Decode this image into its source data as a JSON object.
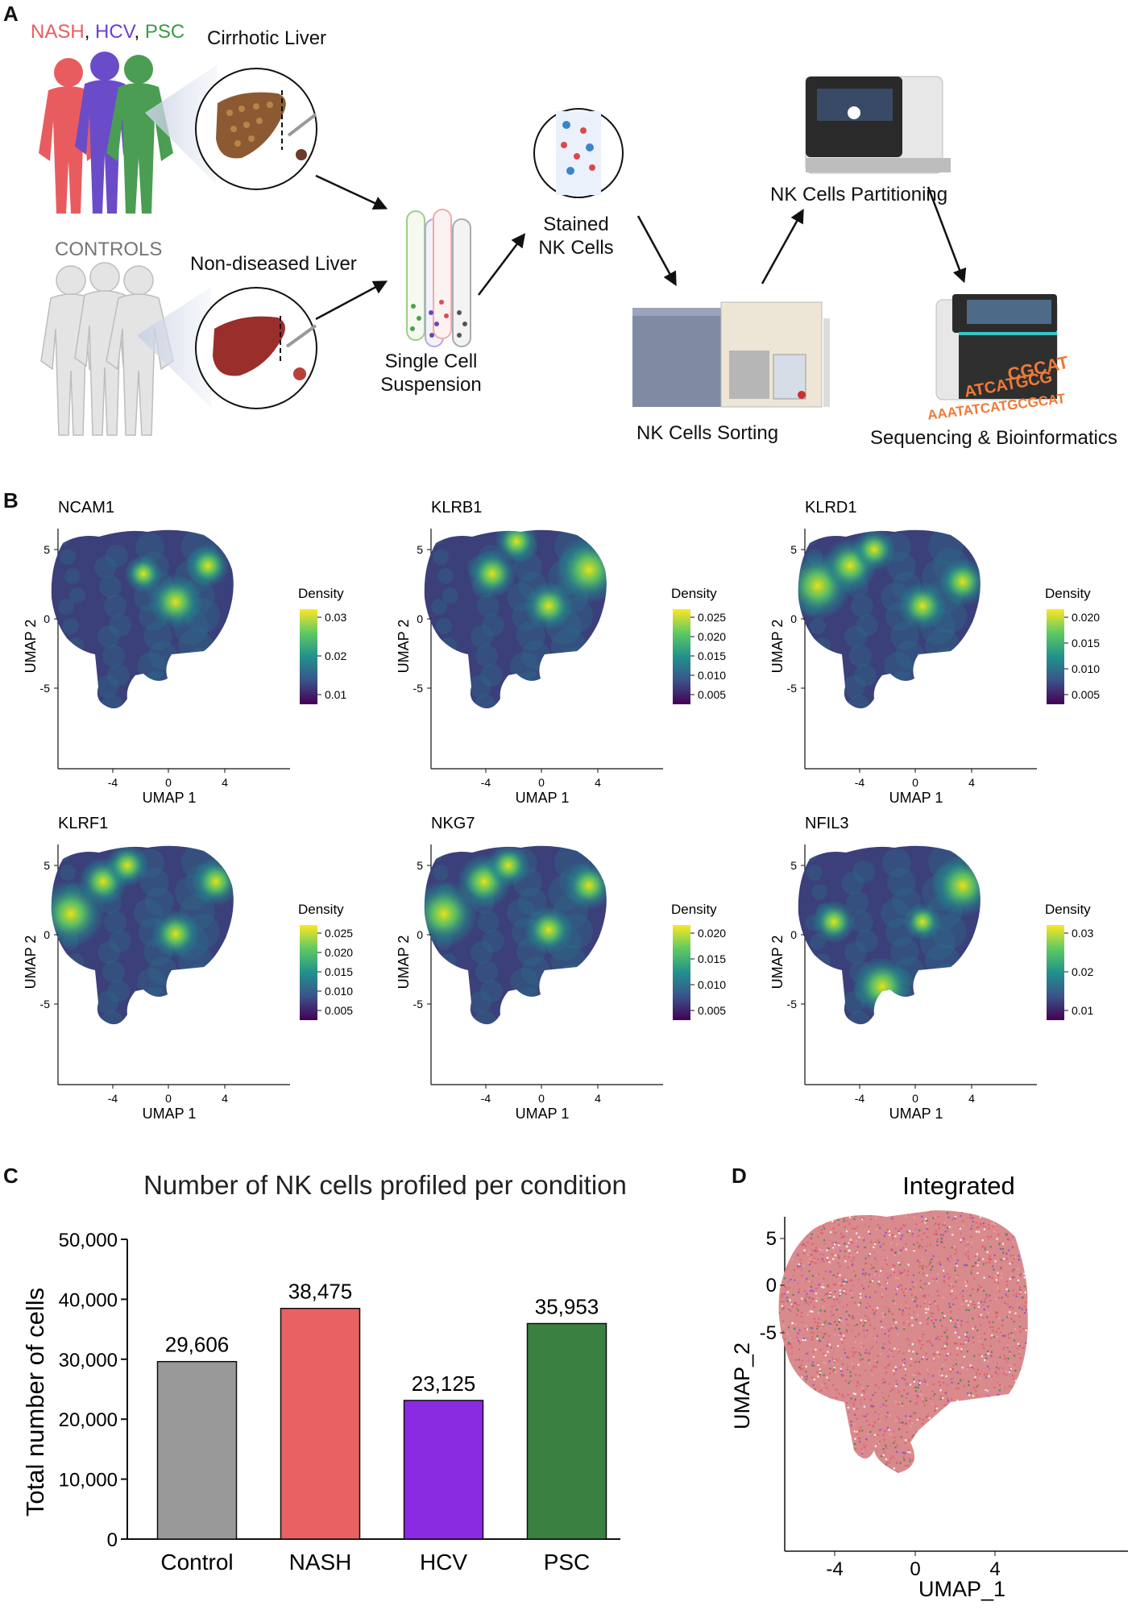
{
  "panelA": {
    "label": "A",
    "diseases": [
      {
        "name": "NASH",
        "color": "#e85c5f"
      },
      {
        "name": "HCV",
        "color": "#6a3fd6"
      },
      {
        "name": "PSC",
        "color": "#3c9a46"
      }
    ],
    "comma1": ",",
    "comma2": ",",
    "cirrhotic": "Cirrhotic Liver",
    "controls": "CONTROLS",
    "nondiseased": "Non-diseased Liver",
    "single_cell": [
      "Single Cell",
      "Suspension"
    ],
    "stained": [
      "Stained",
      "NK Cells"
    ],
    "sorting": "NK Cells Sorting",
    "partitioning": "NK Cells Partitioning",
    "sequencing": "Sequencing & Bioinformatics",
    "dna_lines": [
      "CGCAT",
      "ATCATGCG",
      "AAATATCATGCGCAT"
    ]
  },
  "panelB": {
    "label": "B",
    "xlabel": "UMAP 1",
    "ylabel": "UMAP 2",
    "xticks": [
      "-4",
      "0",
      "4"
    ],
    "yticks": [
      "5",
      "0",
      "-5"
    ],
    "legend_title": "Density",
    "plots": [
      {
        "gene": "NCAM1",
        "ticks": [
          "0.03",
          "0.02",
          "0.01"
        ]
      },
      {
        "gene": "KLRB1",
        "ticks": [
          "0.025",
          "0.020",
          "0.015",
          "0.010",
          "0.005"
        ]
      },
      {
        "gene": "KLRD1",
        "ticks": [
          "0.020",
          "0.015",
          "0.010",
          "0.005"
        ]
      },
      {
        "gene": "KLRF1",
        "ticks": [
          "0.025",
          "0.020",
          "0.015",
          "0.010",
          "0.005"
        ]
      },
      {
        "gene": "NKG7",
        "ticks": [
          "0.020",
          "0.015",
          "0.010",
          "0.005"
        ]
      },
      {
        "gene": "NFIL3",
        "ticks": [
          "0.03",
          "0.02",
          "0.01"
        ]
      }
    ]
  },
  "panelC": {
    "label": "C",
    "chart_data": {
      "type": "bar",
      "title": "Number of NK cells profiled per condition",
      "ylabel": "Total number of cells",
      "categories": [
        "Control",
        "NASH",
        "HCV",
        "PSC"
      ],
      "values": [
        29606,
        38475,
        23125,
        35953
      ],
      "value_labels": [
        "29,606",
        "38,475",
        "23,125",
        "35,953"
      ],
      "colors": [
        "#999999",
        "#e86163",
        "#8a2be2",
        "#3a8040"
      ],
      "ylim": [
        0,
        50000
      ],
      "yticks": [
        0,
        10000,
        20000,
        30000,
        40000,
        50000
      ],
      "ytick_labels": [
        "0",
        "10,000",
        "20,000",
        "30,000",
        "40,000",
        "50,000"
      ]
    }
  },
  "panelD": {
    "label": "D",
    "title": "Integrated",
    "xlabel": "UMAP_1",
    "ylabel": "UMAP_2",
    "xticks": [
      "-4",
      "0",
      "4"
    ],
    "yticks": [
      "5",
      "0",
      "-5"
    ]
  }
}
